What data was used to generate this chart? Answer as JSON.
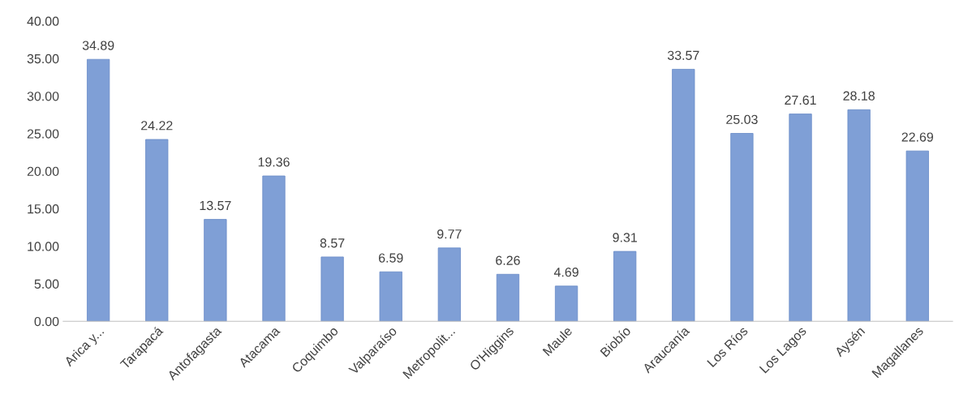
{
  "chart_data": {
    "type": "bar",
    "categories": [
      "Arica y...",
      "Tarapacá",
      "Antofagasta",
      "Atacama",
      "Coquimbo",
      "Valparaíso",
      "Metropolit...",
      "O'Higgins",
      "Maule",
      "Biobío",
      "Araucanía",
      "Los Ríos",
      "Los Lagos",
      "Aysén",
      "Magallanes"
    ],
    "values": [
      34.89,
      24.22,
      13.57,
      19.36,
      8.57,
      6.59,
      9.77,
      6.26,
      4.69,
      9.31,
      33.57,
      25.03,
      27.61,
      28.18,
      22.69
    ],
    "color": "#7f9fd6",
    "ylim": [
      0,
      40
    ],
    "yticks": [
      {
        "value": 0,
        "label": "0.00"
      },
      {
        "value": 5,
        "label": "5.00"
      },
      {
        "value": 10,
        "label": "10.00"
      },
      {
        "value": 15,
        "label": "15.00"
      },
      {
        "value": 20,
        "label": "20.00"
      },
      {
        "value": 25,
        "label": "25.00"
      },
      {
        "value": 30,
        "label": "30.00"
      },
      {
        "value": 35,
        "label": "35.00"
      },
      {
        "value": 40,
        "label": "40.00"
      }
    ],
    "data_labels": true,
    "grid": false,
    "legend": false
  }
}
